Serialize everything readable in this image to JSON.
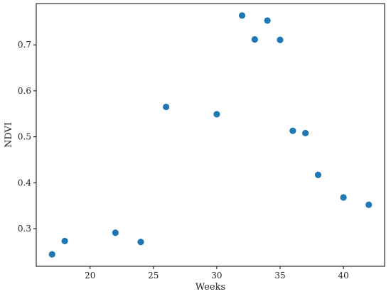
{
  "chart_data": {
    "type": "scatter",
    "title": "",
    "xlabel": "Weeks",
    "ylabel": "NDVI",
    "xlim": [
      15.75,
      43.25
    ],
    "ylim": [
      0.218,
      0.79
    ],
    "xticks": [
      20,
      25,
      30,
      35,
      40
    ],
    "yticks": [
      0.3,
      0.4,
      0.5,
      0.6,
      0.7
    ],
    "xtick_labels": [
      "20",
      "25",
      "30",
      "35",
      "40"
    ],
    "ytick_labels": [
      "0.3",
      "0.4",
      "0.5",
      "0.6",
      "0.7"
    ],
    "grid": false,
    "legend": "none",
    "marker_color": "#1f77b4",
    "series": [
      {
        "x": [
          17,
          18,
          22,
          24,
          26,
          30,
          32,
          33,
          34,
          35,
          36,
          37,
          38,
          40,
          42
        ],
        "y": [
          0.244,
          0.273,
          0.291,
          0.271,
          0.565,
          0.549,
          0.764,
          0.712,
          0.753,
          0.711,
          0.513,
          0.508,
          0.417,
          0.368,
          0.352
        ]
      }
    ]
  }
}
